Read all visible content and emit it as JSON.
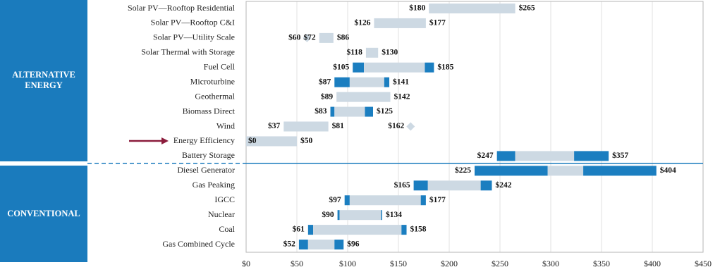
{
  "chart_data": {
    "type": "range_bar",
    "xlim": [
      0,
      450
    ],
    "xticks": [
      {
        "value": 0,
        "label": "$0"
      },
      {
        "value": 50,
        "label": "$50"
      },
      {
        "value": 100,
        "label": "$100"
      },
      {
        "value": 150,
        "label": "$150"
      },
      {
        "value": 200,
        "label": "$200"
      },
      {
        "value": 250,
        "label": "$250"
      },
      {
        "value": 300,
        "label": "$300"
      },
      {
        "value": 350,
        "label": "$350"
      },
      {
        "value": 400,
        "label": "$400"
      },
      {
        "value": 450,
        "label": "$450"
      }
    ],
    "grid": true,
    "groups": [
      {
        "label": "ALTERNATIVE ENERGY",
        "color": "#1a7bbd",
        "rows": [
          {
            "label": "Solar PV—Rooftop Residential",
            "low": 180,
            "low_label": "$180",
            "high": 265,
            "high_label": "$265",
            "segments": [
              {
                "from": 180,
                "to": 265,
                "color": "#cdd9e3"
              }
            ]
          },
          {
            "label": "Solar PV—Rooftop C&I",
            "low": 126,
            "low_label": "$126",
            "high": 177,
            "high_label": "$177",
            "segments": [
              {
                "from": 126,
                "to": 177,
                "color": "#cdd9e3"
              }
            ]
          },
          {
            "label": "Solar PV—Utility Scale",
            "low": 72,
            "low_label": "$72",
            "high": 86,
            "high_label": "$86",
            "segments": [
              {
                "from": 72,
                "to": 86,
                "color": "#cdd9e3"
              }
            ],
            "markers": [
              {
                "value": 60,
                "label": "$60",
                "color": "#cdd9e3"
              }
            ]
          },
          {
            "label": "Solar Thermal with Storage",
            "low": 118,
            "low_label": "$118",
            "high": 130,
            "high_label": "$130",
            "segments": [
              {
                "from": 118,
                "to": 130,
                "color": "#cdd9e3"
              }
            ]
          },
          {
            "label": "Fuel Cell",
            "low": 105,
            "low_label": "$105",
            "high": 185,
            "high_label": "$185",
            "segments": [
              {
                "from": 105,
                "to": 116,
                "color": "#1b7ec0"
              },
              {
                "from": 116,
                "to": 176,
                "color": "#cdd9e3"
              },
              {
                "from": 176,
                "to": 185,
                "color": "#1b7ec0"
              }
            ]
          },
          {
            "label": "Microturbine",
            "low": 87,
            "low_label": "$87",
            "high": 141,
            "high_label": "$141",
            "segments": [
              {
                "from": 87,
                "to": 102,
                "color": "#1b7ec0"
              },
              {
                "from": 102,
                "to": 136,
                "color": "#cdd9e3"
              },
              {
                "from": 136,
                "to": 141,
                "color": "#1b7ec0"
              }
            ]
          },
          {
            "label": "Geothermal",
            "low": 89,
            "low_label": "$89",
            "high": 142,
            "high_label": "$142",
            "segments": [
              {
                "from": 89,
                "to": 142,
                "color": "#cdd9e3"
              }
            ]
          },
          {
            "label": "Biomass Direct",
            "low": 83,
            "low_label": "$83",
            "high": 125,
            "high_label": "$125",
            "segments": [
              {
                "from": 83,
                "to": 87,
                "color": "#1b7ec0"
              },
              {
                "from": 87,
                "to": 117,
                "color": "#cdd9e3"
              },
              {
                "from": 117,
                "to": 125,
                "color": "#1b7ec0"
              }
            ]
          },
          {
            "label": "Wind",
            "low": 37,
            "low_label": "$37",
            "high": 81,
            "high_label": "$81",
            "segments": [
              {
                "from": 37,
                "to": 81,
                "color": "#cdd9e3"
              }
            ],
            "markers": [
              {
                "value": 162,
                "label": "$162",
                "color": "#cdd9e3"
              }
            ]
          },
          {
            "label": "Energy Efficiency",
            "low": 0,
            "low_label": "$0",
            "high": 50,
            "high_label": "$50",
            "segments": [
              {
                "from": 0,
                "to": 50,
                "color": "#cdd9e3"
              }
            ]
          },
          {
            "label": "Battery Storage",
            "low": 247,
            "low_label": "$247",
            "high": 357,
            "high_label": "$357",
            "segments": [
              {
                "from": 247,
                "to": 265,
                "color": "#1b7ec0"
              },
              {
                "from": 265,
                "to": 323,
                "color": "#cdd9e3"
              },
              {
                "from": 323,
                "to": 357,
                "color": "#1b7ec0"
              }
            ]
          }
        ]
      },
      {
        "label": "CONVENTIONAL",
        "color": "#1a7bbd",
        "rows": [
          {
            "label": "Diesel Generator",
            "low": 225,
            "low_label": "$225",
            "high": 404,
            "high_label": "$404",
            "segments": [
              {
                "from": 225,
                "to": 297,
                "color": "#1b7ec0"
              },
              {
                "from": 297,
                "to": 332,
                "color": "#cdd9e3"
              },
              {
                "from": 332,
                "to": 404,
                "color": "#1b7ec0"
              }
            ]
          },
          {
            "label": "Gas Peaking",
            "low": 165,
            "low_label": "$165",
            "high": 242,
            "high_label": "$242",
            "segments": [
              {
                "from": 165,
                "to": 179,
                "color": "#1b7ec0"
              },
              {
                "from": 179,
                "to": 231,
                "color": "#cdd9e3"
              },
              {
                "from": 231,
                "to": 242,
                "color": "#1b7ec0"
              }
            ]
          },
          {
            "label": "IGCC",
            "low": 97,
            "low_label": "$97",
            "high": 177,
            "high_label": "$177",
            "segments": [
              {
                "from": 97,
                "to": 102,
                "color": "#1b7ec0"
              },
              {
                "from": 102,
                "to": 172,
                "color": "#cdd9e3"
              },
              {
                "from": 172,
                "to": 177,
                "color": "#1b7ec0"
              }
            ]
          },
          {
            "label": "Nuclear",
            "low": 90,
            "low_label": "$90",
            "high": 134,
            "high_label": "$134",
            "segments": [
              {
                "from": 90,
                "to": 92,
                "color": "#1b7ec0"
              },
              {
                "from": 92,
                "to": 133,
                "color": "#cdd9e3"
              },
              {
                "from": 133,
                "to": 134,
                "color": "#1b7ec0"
              }
            ]
          },
          {
            "label": "Coal",
            "low": 61,
            "low_label": "$61",
            "high": 158,
            "high_label": "$158",
            "segments": [
              {
                "from": 61,
                "to": 66,
                "color": "#1b7ec0"
              },
              {
                "from": 66,
                "to": 153,
                "color": "#cdd9e3"
              },
              {
                "from": 153,
                "to": 158,
                "color": "#1b7ec0"
              }
            ]
          },
          {
            "label": "Gas Combined Cycle",
            "low": 52,
            "low_label": "$52",
            "high": 96,
            "high_label": "$96",
            "segments": [
              {
                "from": 52,
                "to": 61,
                "color": "#1b7ec0"
              },
              {
                "from": 61,
                "to": 87,
                "color": "#cdd9e3"
              },
              {
                "from": 87,
                "to": 96,
                "color": "#1b7ec0"
              }
            ]
          }
        ]
      }
    ]
  }
}
